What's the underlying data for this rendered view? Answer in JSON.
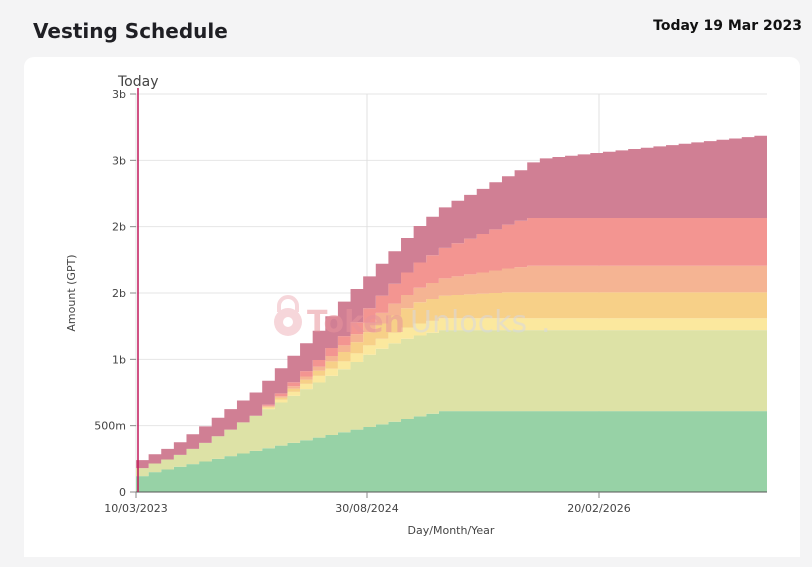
{
  "header": {
    "title": "Vesting Schedule",
    "date_label": "Today 19 Mar 2023"
  },
  "watermark": {
    "word1": "Token",
    "word2": "Unlocks",
    "dot": "."
  },
  "chart_data": {
    "type": "area",
    "stacked": true,
    "title": "",
    "xlabel": "Day/Month/Year",
    "ylabel": "Amount (GPT)",
    "x_ticks": [
      "10/03/2023",
      "30/08/2024",
      "20/02/2026"
    ],
    "y_ticks": [
      "0",
      "500m",
      "1b",
      "2b",
      "2b",
      "3b",
      "3b"
    ],
    "y_tick_values": [
      0,
      500000000,
      1000000000,
      1500000000,
      2000000000,
      2500000000,
      3000000000
    ],
    "ylim": [
      0,
      3000000000
    ],
    "today_marker": {
      "label": "Today",
      "x": 0,
      "color": "#c2185b"
    },
    "grid": true,
    "x_unit": "months since 10/03/2023",
    "x": [
      0,
      1,
      2,
      3,
      4,
      5,
      6,
      7,
      8,
      9,
      10,
      11,
      12,
      13,
      14,
      15,
      16,
      17,
      18,
      19,
      20,
      21,
      22,
      23,
      24,
      25,
      26,
      27,
      28,
      29,
      30,
      31,
      32,
      33,
      34,
      35,
      36,
      37,
      38,
      39,
      40,
      41,
      42,
      43,
      44,
      45,
      46,
      47,
      48,
      49
    ],
    "series": [
      {
        "color": "#97d2a6",
        "values": [
          120,
          150,
          170,
          190,
          210,
          230,
          250,
          270,
          290,
          310,
          330,
          350,
          370,
          390,
          410,
          430,
          450,
          470,
          490,
          510,
          530,
          550,
          570,
          590,
          610,
          610,
          610,
          610,
          610,
          610,
          610,
          610,
          610,
          610,
          610,
          610,
          610,
          610,
          610,
          610,
          610,
          610,
          610,
          610,
          610,
          610,
          610,
          610,
          610,
          610
        ]
      },
      {
        "color": "#dde2a6",
        "values": [
          60,
          65,
          75,
          90,
          115,
          140,
          170,
          200,
          235,
          265,
          295,
          325,
          355,
          385,
          415,
          445,
          475,
          510,
          545,
          570,
          590,
          605,
          610,
          610,
          610,
          610,
          610,
          610,
          610,
          610,
          610,
          610,
          610,
          610,
          610,
          610,
          610,
          610,
          610,
          610,
          610,
          610,
          610,
          610,
          610,
          610,
          610,
          610,
          610,
          610
        ]
      },
      {
        "color": "#fbe89e",
        "values": [
          0,
          0,
          0,
          0,
          0,
          0,
          0,
          0,
          0,
          0,
          10,
          20,
          30,
          40,
          50,
          55,
          60,
          65,
          70,
          75,
          80,
          85,
          90,
          90,
          90,
          90,
          90,
          90,
          90,
          90,
          90,
          90,
          90,
          90,
          90,
          90,
          90,
          90,
          90,
          90,
          90,
          90,
          90,
          90,
          90,
          90,
          90,
          90,
          90,
          90
        ]
      },
      {
        "color": "#f7d088",
        "values": [
          0,
          0,
          0,
          0,
          0,
          0,
          0,
          0,
          0,
          0,
          8,
          16,
          24,
          32,
          40,
          55,
          70,
          85,
          100,
          115,
          130,
          145,
          160,
          165,
          170,
          175,
          180,
          185,
          190,
          195,
          195,
          195,
          195,
          195,
          195,
          195,
          195,
          195,
          195,
          195,
          195,
          195,
          195,
          195,
          195,
          195,
          195,
          195,
          195,
          195
        ]
      },
      {
        "color": "#f5b493",
        "values": [
          0,
          0,
          0,
          0,
          0,
          0,
          0,
          0,
          0,
          0,
          6,
          12,
          18,
          24,
          30,
          40,
          50,
          60,
          70,
          80,
          90,
          100,
          110,
          120,
          130,
          140,
          150,
          160,
          170,
          180,
          190,
          200,
          200,
          200,
          200,
          200,
          200,
          200,
          200,
          200,
          200,
          200,
          200,
          200,
          200,
          200,
          200,
          200,
          200,
          200
        ]
      },
      {
        "color": "#f39591",
        "values": [
          0,
          0,
          0,
          0,
          0,
          0,
          0,
          0,
          0,
          0,
          10,
          20,
          30,
          40,
          50,
          60,
          70,
          90,
          110,
          130,
          150,
          170,
          190,
          210,
          230,
          250,
          270,
          290,
          310,
          330,
          350,
          360,
          360,
          360,
          360,
          360,
          360,
          360,
          360,
          360,
          360,
          360,
          360,
          360,
          360,
          360,
          360,
          360,
          360,
          360
        ]
      },
      {
        "color": "#d07f94",
        "values": [
          60,
          70,
          80,
          95,
          110,
          125,
          140,
          155,
          165,
          175,
          180,
          190,
          200,
          210,
          220,
          240,
          260,
          250,
          240,
          240,
          245,
          260,
          275,
          290,
          305,
          320,
          330,
          340,
          355,
          365,
          380,
          420,
          450,
          460,
          470,
          480,
          490,
          500,
          510,
          520,
          530,
          540,
          550,
          560,
          570,
          580,
          590,
          600,
          610,
          620
        ]
      }
    ]
  }
}
